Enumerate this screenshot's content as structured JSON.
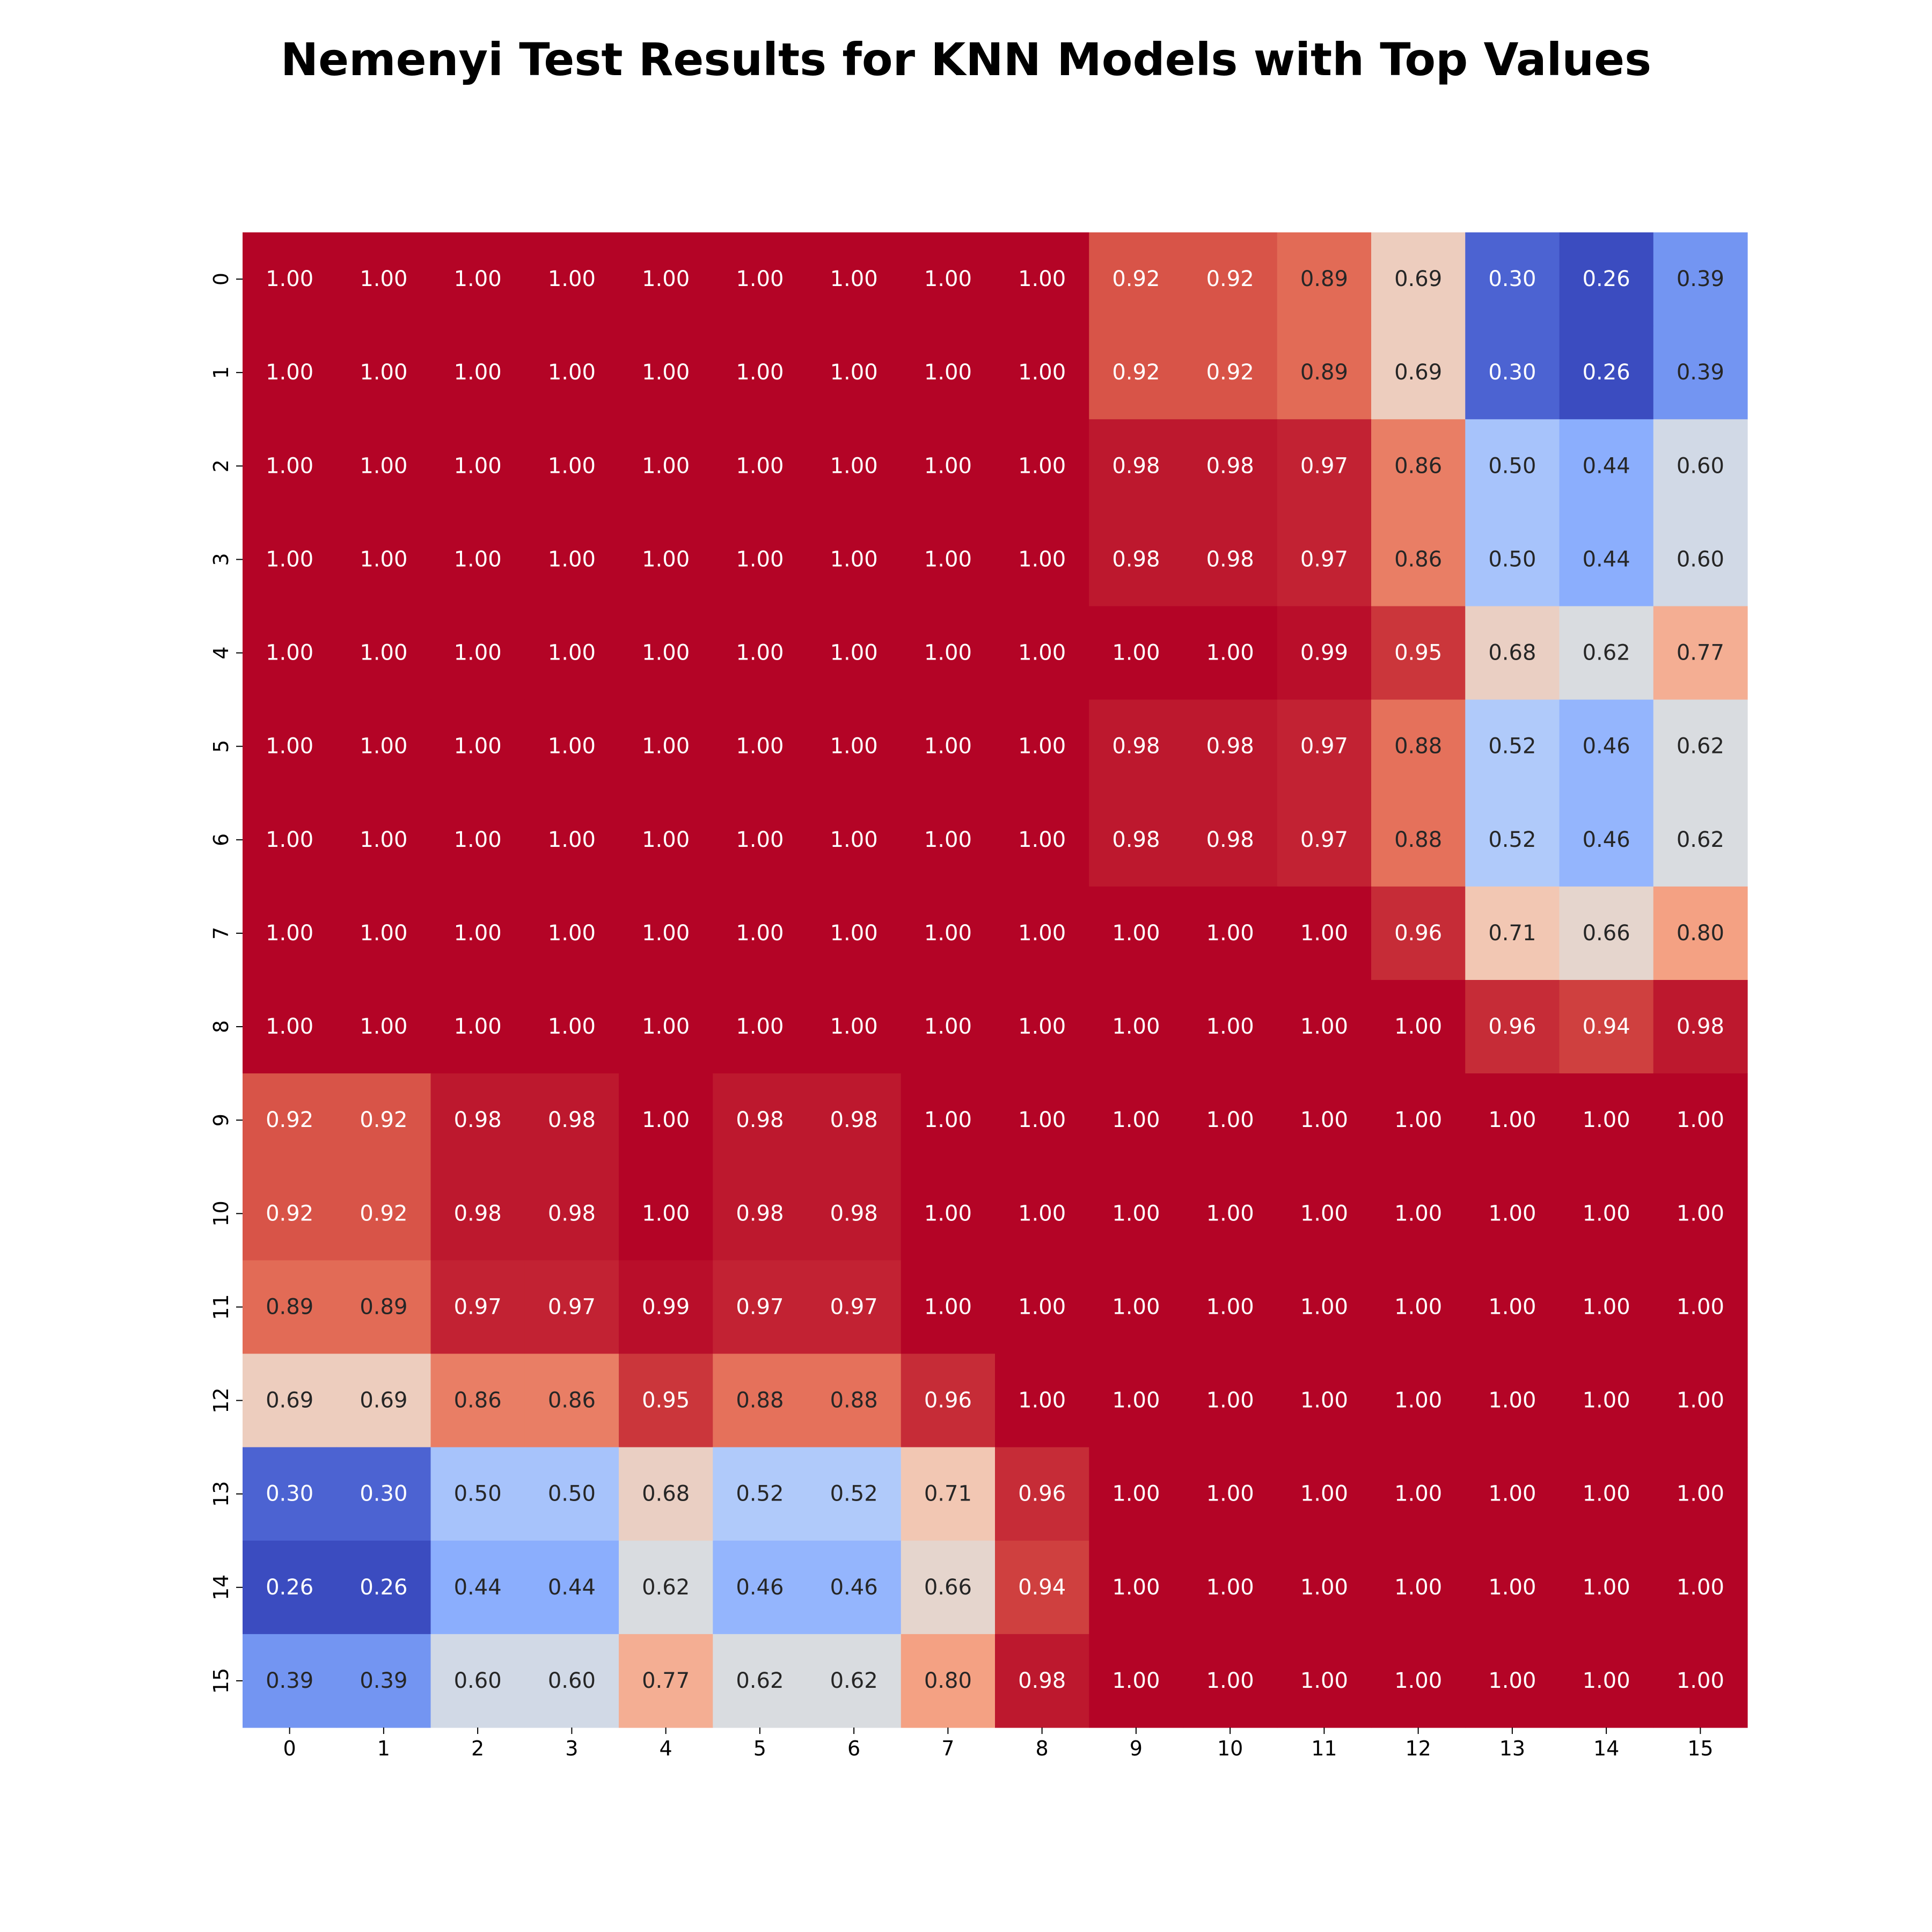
{
  "chart_data": {
    "type": "heatmap",
    "title": "Nemenyi Test Results for KNN Models with Top Values",
    "xlabel": "",
    "ylabel": "",
    "colormap": "coolwarm",
    "value_format": "2 decimals",
    "colorbar": false,
    "vmin": 0.26,
    "vmax": 1.0,
    "x_labels": [
      "0",
      "1",
      "2",
      "3",
      "4",
      "5",
      "6",
      "7",
      "8",
      "9",
      "10",
      "11",
      "12",
      "13",
      "14",
      "15"
    ],
    "y_labels": [
      "0",
      "1",
      "2",
      "3",
      "4",
      "5",
      "6",
      "7",
      "8",
      "9",
      "10",
      "11",
      "12",
      "13",
      "14",
      "15"
    ],
    "values": [
      [
        1.0,
        1.0,
        1.0,
        1.0,
        1.0,
        1.0,
        1.0,
        1.0,
        1.0,
        0.92,
        0.92,
        0.89,
        0.69,
        0.3,
        0.26,
        0.39
      ],
      [
        1.0,
        1.0,
        1.0,
        1.0,
        1.0,
        1.0,
        1.0,
        1.0,
        1.0,
        0.92,
        0.92,
        0.89,
        0.69,
        0.3,
        0.26,
        0.39
      ],
      [
        1.0,
        1.0,
        1.0,
        1.0,
        1.0,
        1.0,
        1.0,
        1.0,
        1.0,
        0.98,
        0.98,
        0.97,
        0.86,
        0.5,
        0.44,
        0.6
      ],
      [
        1.0,
        1.0,
        1.0,
        1.0,
        1.0,
        1.0,
        1.0,
        1.0,
        1.0,
        0.98,
        0.98,
        0.97,
        0.86,
        0.5,
        0.44,
        0.6
      ],
      [
        1.0,
        1.0,
        1.0,
        1.0,
        1.0,
        1.0,
        1.0,
        1.0,
        1.0,
        1.0,
        1.0,
        0.99,
        0.95,
        0.68,
        0.62,
        0.77
      ],
      [
        1.0,
        1.0,
        1.0,
        1.0,
        1.0,
        1.0,
        1.0,
        1.0,
        1.0,
        0.98,
        0.98,
        0.97,
        0.88,
        0.52,
        0.46,
        0.62
      ],
      [
        1.0,
        1.0,
        1.0,
        1.0,
        1.0,
        1.0,
        1.0,
        1.0,
        1.0,
        0.98,
        0.98,
        0.97,
        0.88,
        0.52,
        0.46,
        0.62
      ],
      [
        1.0,
        1.0,
        1.0,
        1.0,
        1.0,
        1.0,
        1.0,
        1.0,
        1.0,
        1.0,
        1.0,
        1.0,
        0.96,
        0.71,
        0.66,
        0.8
      ],
      [
        1.0,
        1.0,
        1.0,
        1.0,
        1.0,
        1.0,
        1.0,
        1.0,
        1.0,
        1.0,
        1.0,
        1.0,
        1.0,
        0.96,
        0.94,
        0.98
      ],
      [
        0.92,
        0.92,
        0.98,
        0.98,
        1.0,
        0.98,
        0.98,
        1.0,
        1.0,
        1.0,
        1.0,
        1.0,
        1.0,
        1.0,
        1.0,
        1.0
      ],
      [
        0.92,
        0.92,
        0.98,
        0.98,
        1.0,
        0.98,
        0.98,
        1.0,
        1.0,
        1.0,
        1.0,
        1.0,
        1.0,
        1.0,
        1.0,
        1.0
      ],
      [
        0.89,
        0.89,
        0.97,
        0.97,
        0.99,
        0.97,
        0.97,
        1.0,
        1.0,
        1.0,
        1.0,
        1.0,
        1.0,
        1.0,
        1.0,
        1.0
      ],
      [
        0.69,
        0.69,
        0.86,
        0.86,
        0.95,
        0.88,
        0.88,
        0.96,
        1.0,
        1.0,
        1.0,
        1.0,
        1.0,
        1.0,
        1.0,
        1.0
      ],
      [
        0.3,
        0.3,
        0.5,
        0.5,
        0.68,
        0.52,
        0.52,
        0.71,
        0.96,
        1.0,
        1.0,
        1.0,
        1.0,
        1.0,
        1.0,
        1.0
      ],
      [
        0.26,
        0.26,
        0.44,
        0.44,
        0.62,
        0.46,
        0.46,
        0.66,
        0.94,
        1.0,
        1.0,
        1.0,
        1.0,
        1.0,
        1.0,
        1.0
      ],
      [
        0.39,
        0.39,
        0.6,
        0.6,
        0.77,
        0.62,
        0.62,
        0.8,
        0.98,
        1.0,
        1.0,
        1.0,
        1.0,
        1.0,
        1.0,
        1.0
      ]
    ]
  }
}
